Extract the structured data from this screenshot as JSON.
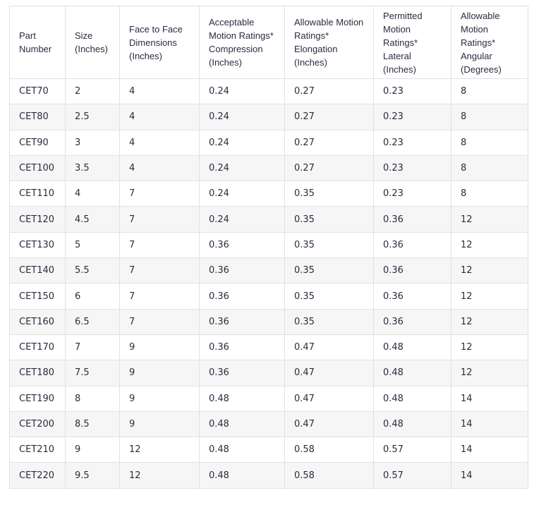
{
  "colors": {
    "text": "#2b2b40",
    "border": "#e1e1e1",
    "row_alt": "#f6f6f6",
    "row_bg": "#ffffff",
    "page_bg": "#ffffff"
  },
  "table": {
    "columns": [
      "Part Number",
      "Size (Inches)",
      "Face to Face Dimensions (Inches)",
      "Acceptable Motion Ratings* Compression (Inches)",
      "Allowable Motion Ratings* Elongation (Inches)",
      "Permitted Motion Ratings* Lateral (Inches)",
      "Allowable Motion Ratings* Angular (Degrees)"
    ],
    "rows": [
      [
        "CET70",
        "2",
        "4",
        "0.24",
        "0.27",
        "0.23",
        "8"
      ],
      [
        "CET80",
        "2.5",
        "4",
        "0.24",
        "0.27",
        "0.23",
        "8"
      ],
      [
        "CET90",
        "3",
        "4",
        "0.24",
        "0.27",
        "0.23",
        "8"
      ],
      [
        "CET100",
        "3.5",
        "4",
        "0.24",
        "0.27",
        "0.23",
        "8"
      ],
      [
        "CET110",
        "4",
        "7",
        "0.24",
        "0.35",
        "0.23",
        "8"
      ],
      [
        "CET120",
        "4.5",
        "7",
        "0.24",
        "0.35",
        "0.36",
        "12"
      ],
      [
        "CET130",
        "5",
        "7",
        "0.36",
        "0.35",
        "0.36",
        "12"
      ],
      [
        "CET140",
        "5.5",
        "7",
        "0.36",
        "0.35",
        "0.36",
        "12"
      ],
      [
        "CET150",
        "6",
        "7",
        "0.36",
        "0.35",
        "0.36",
        "12"
      ],
      [
        "CET160",
        "6.5",
        "7",
        "0.36",
        "0.35",
        "0.36",
        "12"
      ],
      [
        "CET170",
        "7",
        "9",
        "0.36",
        "0.47",
        "0.48",
        "12"
      ],
      [
        "CET180",
        "7.5",
        "9",
        "0.36",
        "0.47",
        "0.48",
        "12"
      ],
      [
        "CET190",
        "8",
        "9",
        "0.48",
        "0.47",
        "0.48",
        "14"
      ],
      [
        "CET200",
        "8.5",
        "9",
        "0.48",
        "0.47",
        "0.48",
        "14"
      ],
      [
        "CET210",
        "9",
        "12",
        "0.48",
        "0.58",
        "0.57",
        "14"
      ],
      [
        "CET220",
        "9.5",
        "12",
        "0.48",
        "0.58",
        "0.57",
        "14"
      ]
    ]
  }
}
